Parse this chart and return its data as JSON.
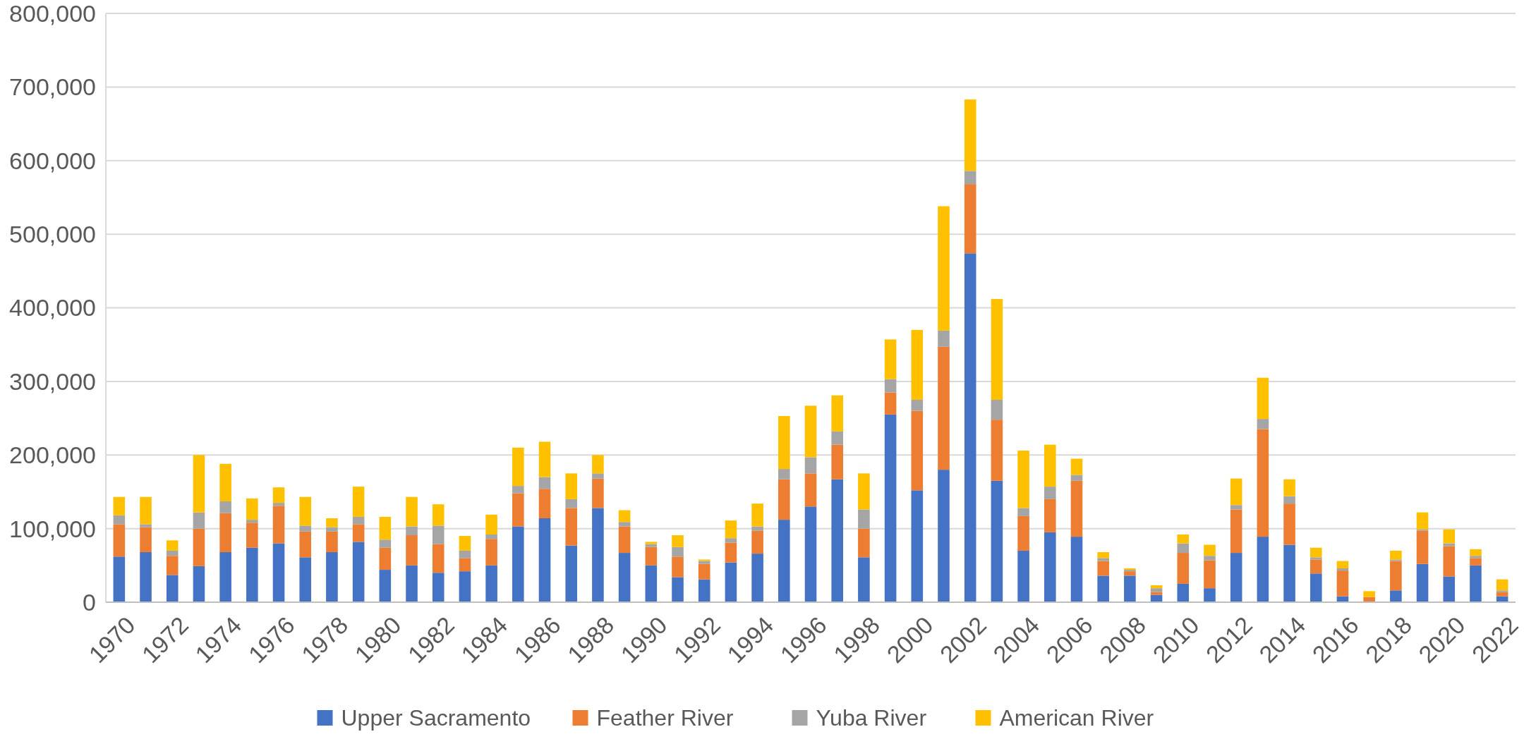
{
  "chart_data": {
    "type": "bar",
    "stacked": true,
    "categories": [
      "1970",
      null,
      "1972",
      null,
      "1974",
      null,
      "1976",
      null,
      "1978",
      null,
      "1980",
      null,
      "1982",
      null,
      "1984",
      null,
      "1986",
      null,
      "1988",
      null,
      "1990",
      null,
      "1992",
      null,
      "1994",
      null,
      "1996",
      null,
      "1998",
      null,
      "2000",
      null,
      "2002",
      null,
      "2004",
      null,
      "2006",
      null,
      "2008",
      null,
      "2010",
      null,
      "2012",
      null,
      "2014",
      null,
      "2016",
      null,
      "2018",
      null,
      "2020",
      null,
      "2022"
    ],
    "series": [
      {
        "name": "Upper Sacramento",
        "color": "#4472c4",
        "values": [
          62000,
          68000,
          37000,
          49000,
          68000,
          74000,
          80000,
          61000,
          68000,
          82000,
          44000,
          50000,
          40000,
          42000,
          50000,
          103000,
          114000,
          77000,
          128000,
          67000,
          50000,
          34000,
          31000,
          54000,
          66000,
          112000,
          130000,
          167000,
          61000,
          255000,
          152000,
          180000,
          474000,
          165000,
          70000,
          95000,
          89000,
          36000,
          36000,
          10000,
          25000,
          19000,
          67000,
          89000,
          78000,
          39000,
          8000,
          null,
          16000,
          52000,
          35000,
          50000,
          8000
        ]
      },
      {
        "name": "Feather River",
        "color": "#ed7d31",
        "values": [
          44000,
          34000,
          26000,
          51000,
          53000,
          34000,
          51000,
          35000,
          28000,
          24000,
          30000,
          41000,
          39000,
          18000,
          36000,
          45000,
          40000,
          51000,
          40000,
          36000,
          25000,
          28000,
          21000,
          27000,
          31000,
          55000,
          45000,
          47000,
          39000,
          30000,
          108000,
          167000,
          94000,
          83000,
          47000,
          45000,
          76000,
          20000,
          6000,
          4000,
          42000,
          38000,
          59000,
          146000,
          56000,
          19000,
          35000,
          7000,
          40000,
          45000,
          41000,
          10000,
          6000
        ]
      },
      {
        "name": "Yuba River",
        "color": "#a5a5a5",
        "values": [
          12000,
          4000,
          7000,
          22000,
          16000,
          4000,
          4000,
          8000,
          6000,
          10000,
          11000,
          12000,
          25000,
          10000,
          6000,
          10000,
          16000,
          12000,
          7000,
          6000,
          4000,
          13000,
          4000,
          6000,
          6000,
          14000,
          22000,
          18000,
          26000,
          18000,
          15000,
          22000,
          18000,
          27000,
          11000,
          17000,
          8000,
          4000,
          2000,
          5000,
          13000,
          6000,
          6000,
          14000,
          10000,
          3000,
          3000,
          null,
          2000,
          2000,
          4000,
          3000,
          2000
        ]
      },
      {
        "name": "American River",
        "color": "#ffc000",
        "values": [
          25000,
          37000,
          14000,
          78000,
          51000,
          29000,
          21000,
          39000,
          12000,
          41000,
          31000,
          40000,
          29000,
          20000,
          27000,
          52000,
          48000,
          35000,
          25000,
          16000,
          3000,
          16000,
          2000,
          24000,
          31000,
          72000,
          70000,
          49000,
          49000,
          54000,
          95000,
          169000,
          97000,
          137000,
          78000,
          57000,
          22000,
          8000,
          2000,
          4000,
          12000,
          15000,
          36000,
          56000,
          23000,
          13000,
          10000,
          8000,
          12000,
          23000,
          19000,
          9000,
          15000
        ]
      }
    ],
    "ylim": [
      0,
      800000
    ],
    "yticks": [
      0,
      {
        "value": 100000,
        "label": "100,000"
      },
      {
        "value": 200000,
        "label": "200,000"
      },
      {
        "value": 300000,
        "label": "300,000"
      },
      {
        "value": 400000,
        "label": "400,000"
      },
      {
        "value": 500000,
        "label": "500,000"
      },
      {
        "value": 600000,
        "label": "600,000"
      },
      {
        "value": 700000,
        "label": "700,000"
      },
      {
        "value": 800000,
        "label": "800,000"
      }
    ],
    "grid": "y",
    "legend": "bottom"
  }
}
